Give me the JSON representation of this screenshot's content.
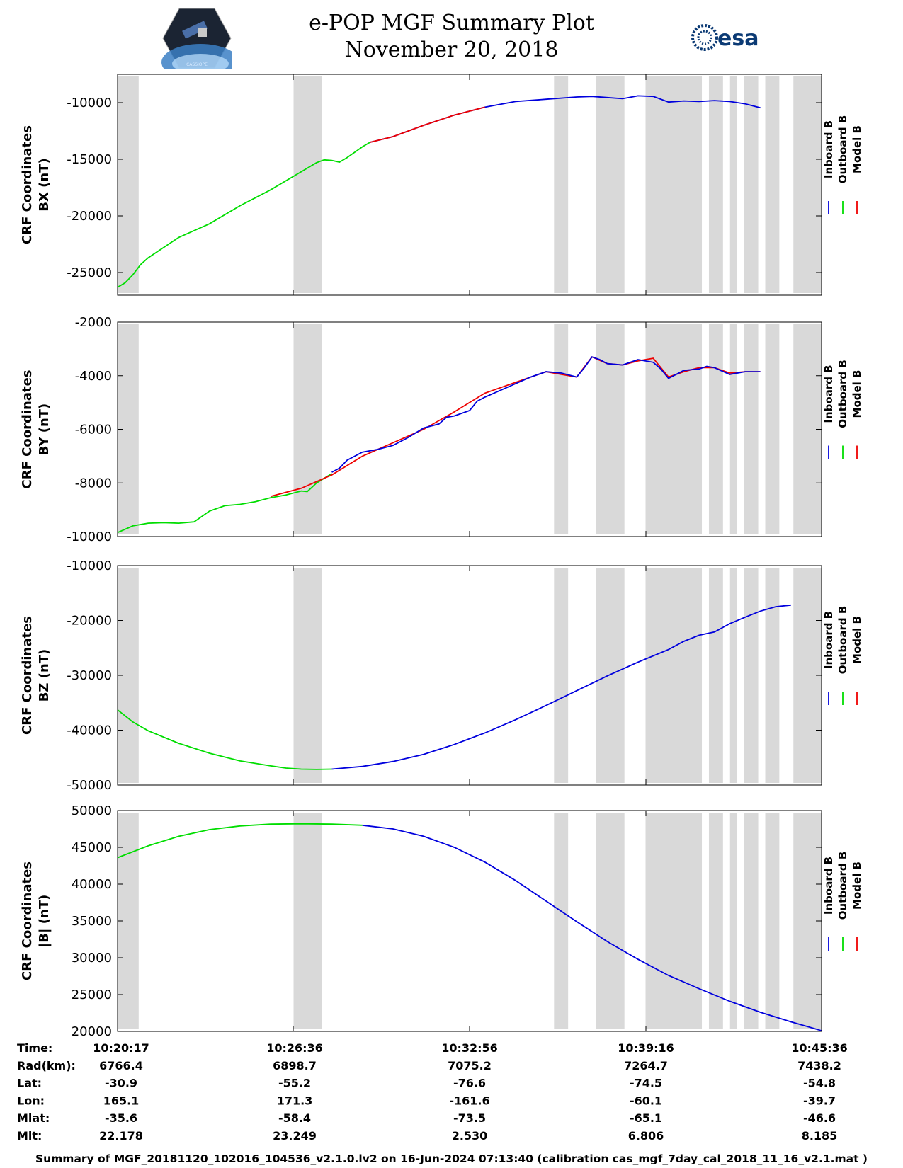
{
  "header": {
    "title_line1": "e-POP MGF Summary Plot",
    "title_line2": "November 20, 2018",
    "esa_text": "esa",
    "cassiope_text": "CASSIOPE"
  },
  "colors": {
    "inboard": "#0000dd",
    "outboard": "#00dd00",
    "model": "#ee0000",
    "gap": "#d9d9d9"
  },
  "chart_data": [
    {
      "type": "line",
      "ylabel_line1": "CRF Coordinates",
      "ylabel_line2": "BX (nT)",
      "ylim": [
        -27000,
        -7500
      ],
      "yticks": [
        -25000,
        -20000,
        -15000,
        -10000
      ],
      "ytick_labels": [
        "-25000",
        "-20000",
        "-15000",
        "-10000"
      ],
      "legend": [
        "Inboard B",
        "Outboard B",
        "Model B"
      ],
      "series": [
        {
          "name": "Outboard B",
          "points": [
            [
              0,
              -26300
            ],
            [
              0.5,
              -25900
            ],
            [
              1,
              -25200
            ],
            [
              1.5,
              -24300
            ],
            [
              2,
              -23700
            ],
            [
              3,
              -22800
            ],
            [
              4,
              -21900
            ],
            [
              5,
              -21300
            ],
            [
              6,
              -20700
            ],
            [
              7,
              -19900
            ],
            [
              8,
              -19100
            ],
            [
              9,
              -18400
            ],
            [
              10,
              -17700
            ],
            [
              11,
              -16900
            ],
            [
              12,
              -16100
            ],
            [
              13,
              -15300
            ],
            [
              13.5,
              -15050
            ],
            [
              14,
              -15100
            ],
            [
              14.5,
              -15250
            ],
            [
              15,
              -14850
            ],
            [
              16,
              -13900
            ],
            [
              16.5,
              -13500
            ]
          ]
        },
        {
          "name": "Inboard B",
          "points": [
            [
              16.5,
              -13500
            ],
            [
              18,
              -13000
            ],
            [
              20,
              -12000
            ],
            [
              22,
              -11100
            ],
            [
              24,
              -10400
            ],
            [
              26,
              -9900
            ],
            [
              28,
              -9700
            ],
            [
              30,
              -9500
            ],
            [
              31,
              -9450
            ],
            [
              32,
              -9550
            ],
            [
              33,
              -9650
            ],
            [
              34,
              -9400
            ],
            [
              35,
              -9450
            ],
            [
              36,
              -9950
            ],
            [
              37,
              -9850
            ],
            [
              38,
              -9900
            ],
            [
              39,
              -9820
            ],
            [
              40,
              -9900
            ],
            [
              41,
              -10100
            ],
            [
              42,
              -10450
            ]
          ]
        },
        {
          "name": "Model B",
          "points": [
            [
              16.5,
              -13500
            ],
            [
              18,
              -13000
            ],
            [
              20,
              -12000
            ],
            [
              22,
              -11100
            ],
            [
              24,
              -10400
            ]
          ]
        }
      ]
    },
    {
      "type": "line",
      "ylabel_line1": "CRF Coordinates",
      "ylabel_line2": "BY (nT)",
      "ylim": [
        -10000,
        -2000
      ],
      "yticks": [
        -10000,
        -8000,
        -6000,
        -4000,
        -2000
      ],
      "ytick_labels": [
        "-10000",
        "-8000",
        "-6000",
        "-4000",
        "-2000"
      ],
      "legend": [
        "Inboard B",
        "Outboard B",
        "Model B"
      ],
      "series": [
        {
          "name": "Outboard B",
          "points": [
            [
              0,
              -9850
            ],
            [
              1,
              -9600
            ],
            [
              2,
              -9500
            ],
            [
              3,
              -9480
            ],
            [
              4,
              -9500
            ],
            [
              5,
              -9450
            ],
            [
              6,
              -9050
            ],
            [
              7,
              -8850
            ],
            [
              8,
              -8800
            ],
            [
              9,
              -8700
            ],
            [
              10,
              -8550
            ],
            [
              11,
              -8450
            ],
            [
              12,
              -8300
            ],
            [
              12.4,
              -8320
            ],
            [
              13,
              -8000
            ],
            [
              14,
              -7650
            ]
          ]
        },
        {
          "name": "Model B",
          "points": [
            [
              10,
              -8500
            ],
            [
              12,
              -8200
            ],
            [
              14,
              -7700
            ],
            [
              16,
              -7000
            ],
            [
              18,
              -6500
            ],
            [
              20,
              -6000
            ],
            [
              22,
              -5350
            ],
            [
              24,
              -4650
            ],
            [
              26,
              -4250
            ],
            [
              28,
              -3850
            ],
            [
              30,
              -4050
            ],
            [
              31,
              -3300
            ],
            [
              32,
              -3550
            ],
            [
              33,
              -3600
            ],
            [
              34,
              -3450
            ],
            [
              35,
              -3350
            ],
            [
              36,
              -4050
            ],
            [
              37,
              -3850
            ],
            [
              38,
              -3700
            ],
            [
              39,
              -3700
            ],
            [
              40,
              -3900
            ],
            [
              41,
              -3850
            ],
            [
              42,
              -3850
            ]
          ]
        },
        {
          "name": "Inboard B",
          "points": [
            [
              14,
              -7600
            ],
            [
              14.5,
              -7450
            ],
            [
              15,
              -7150
            ],
            [
              16,
              -6850
            ],
            [
              17,
              -6750
            ],
            [
              18,
              -6600
            ],
            [
              19,
              -6300
            ],
            [
              20,
              -5950
            ],
            [
              21,
              -5800
            ],
            [
              21.5,
              -5550
            ],
            [
              22,
              -5500
            ],
            [
              23,
              -5300
            ],
            [
              23.5,
              -4950
            ],
            [
              24,
              -4800
            ],
            [
              25,
              -4550
            ],
            [
              26,
              -4300
            ],
            [
              27,
              -4050
            ],
            [
              28,
              -3850
            ],
            [
              29,
              -3900
            ],
            [
              30,
              -4050
            ],
            [
              30.5,
              -3700
            ],
            [
              31,
              -3300
            ],
            [
              31.5,
              -3400
            ],
            [
              32,
              -3550
            ],
            [
              33,
              -3600
            ],
            [
              34,
              -3400
            ],
            [
              35,
              -3500
            ],
            [
              35.5,
              -3750
            ],
            [
              36,
              -4100
            ],
            [
              36.5,
              -3950
            ],
            [
              37,
              -3800
            ],
            [
              38,
              -3750
            ],
            [
              38.5,
              -3650
            ],
            [
              39,
              -3700
            ],
            [
              40,
              -3950
            ],
            [
              41,
              -3850
            ],
            [
              42,
              -3850
            ]
          ]
        }
      ]
    },
    {
      "type": "line",
      "ylabel_line1": "CRF Coordinates",
      "ylabel_line2": "BZ (nT)",
      "ylim": [
        -50000,
        -10000
      ],
      "yticks": [
        -50000,
        -40000,
        -30000,
        -20000,
        -10000
      ],
      "ytick_labels": [
        "-50000",
        "-40000",
        "-30000",
        "-20000",
        "-10000"
      ],
      "legend": [
        "Inboard B",
        "Outboard B",
        "Model B"
      ],
      "series": [
        {
          "name": "Outboard B",
          "points": [
            [
              0,
              -36300
            ],
            [
              1,
              -38500
            ],
            [
              2,
              -40100
            ],
            [
              4,
              -42400
            ],
            [
              6,
              -44200
            ],
            [
              8,
              -45600
            ],
            [
              10,
              -46500
            ],
            [
              11,
              -46900
            ],
            [
              12,
              -47100
            ],
            [
              13,
              -47150
            ],
            [
              14,
              -47100
            ]
          ]
        },
        {
          "name": "Inboard B",
          "points": [
            [
              14,
              -47100
            ],
            [
              16,
              -46600
            ],
            [
              18,
              -45700
            ],
            [
              20,
              -44400
            ],
            [
              22,
              -42600
            ],
            [
              24,
              -40500
            ],
            [
              26,
              -38100
            ],
            [
              28,
              -35500
            ],
            [
              30,
              -32800
            ],
            [
              32,
              -30100
            ],
            [
              34,
              -27600
            ],
            [
              36,
              -25300
            ],
            [
              37,
              -23800
            ],
            [
              38,
              -22700
            ],
            [
              39,
              -22100
            ],
            [
              40,
              -20600
            ],
            [
              41,
              -19400
            ],
            [
              42,
              -18300
            ],
            [
              43,
              -17500
            ],
            [
              44,
              -17200
            ]
          ]
        }
      ]
    },
    {
      "type": "line",
      "ylabel_line1": "CRF Coordinates",
      "ylabel_line2": "|B| (nT)",
      "ylim": [
        20000,
        50000
      ],
      "yticks": [
        20000,
        25000,
        30000,
        35000,
        40000,
        45000,
        50000
      ],
      "ytick_labels": [
        "20000",
        "25000",
        "30000",
        "35000",
        "40000",
        "45000",
        "50000"
      ],
      "legend": [
        "Inboard B",
        "Outboard B",
        "Model B"
      ],
      "series": [
        {
          "name": "Outboard B",
          "points": [
            [
              0,
              43600
            ],
            [
              2,
              45200
            ],
            [
              4,
              46500
            ],
            [
              6,
              47400
            ],
            [
              8,
              47900
            ],
            [
              10,
              48150
            ],
            [
              12,
              48200
            ],
            [
              14,
              48150
            ],
            [
              16,
              48000
            ]
          ]
        },
        {
          "name": "Inboard B",
          "points": [
            [
              16,
              48000
            ],
            [
              18,
              47500
            ],
            [
              20,
              46500
            ],
            [
              22,
              45000
            ],
            [
              24,
              43000
            ],
            [
              26,
              40500
            ],
            [
              28,
              37700
            ],
            [
              30,
              34900
            ],
            [
              32,
              32200
            ],
            [
              34,
              29800
            ],
            [
              36,
              27600
            ],
            [
              38,
              25800
            ],
            [
              40,
              24100
            ],
            [
              42,
              22600
            ],
            [
              44,
              21300
            ],
            [
              46,
              20100
            ]
          ]
        }
      ]
    }
  ],
  "x_axis": {
    "times": [
      "10:20:17",
      "10:26:36",
      "10:32:56",
      "10:39:16",
      "10:45:36"
    ]
  },
  "gaps": [
    [
      0,
      3
    ],
    [
      25,
      29
    ],
    [
      62,
      64
    ],
    [
      68,
      72
    ],
    [
      75,
      83
    ],
    [
      84,
      86
    ],
    [
      87,
      88
    ],
    [
      89,
      91
    ],
    [
      92,
      94
    ],
    [
      96,
      100
    ]
  ],
  "orbit_table": {
    "rows": [
      {
        "label": "Time:",
        "values": [
          "10:20:17",
          "10:26:36",
          "10:32:56",
          "10:39:16",
          "10:45:36"
        ]
      },
      {
        "label": "Rad(km):",
        "values": [
          "6766.4",
          "6898.7",
          "7075.2",
          "7264.7",
          "7438.2"
        ]
      },
      {
        "label": "Lat:",
        "values": [
          "-30.9",
          "-55.2",
          "-76.6",
          "-74.5",
          "-54.8"
        ]
      },
      {
        "label": "Lon:",
        "values": [
          "165.1",
          "171.3",
          "-161.6",
          "-60.1",
          "-39.7"
        ]
      },
      {
        "label": "Mlat:",
        "values": [
          "-35.6",
          "-58.4",
          "-73.5",
          "-65.1",
          "-46.6"
        ]
      },
      {
        "label": "Mlt:",
        "values": [
          "22.178",
          "23.249",
          "2.530",
          "6.806",
          "8.185"
        ]
      }
    ]
  },
  "footer": {
    "text": "Summary of MGF_20181120_102016_104536_v2.1.0.lv2 on 16-Jun-2024 07:13:40 (calibration cas_mgf_7day_cal_2018_11_16_v2.1.mat )"
  }
}
